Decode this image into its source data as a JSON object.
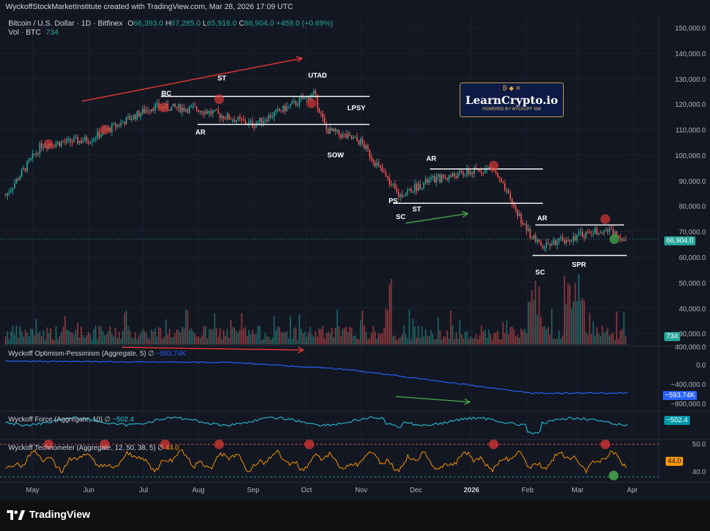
{
  "header": {
    "published_by": "WyckoffStockMarketInstitute created with TradingView.com, Mar 28, 2026 17:09 UTC",
    "symbol": "Bitcoin / U.S. Dollar · 1D · Bitfinex",
    "o_label": "O",
    "o_value": "66,393.0",
    "h_label": "H",
    "h_value": "67,285.0",
    "l_label": "L",
    "l_value": "65,916.0",
    "c_label": "C",
    "c_value": "66,904.0",
    "change": "+459.0 (+0.69%)",
    "volume_label": "Vol · BTC",
    "volume_value": "734"
  },
  "price_axis": {
    "ticks": [
      "150,000.0",
      "140,000.0",
      "130,000.0",
      "120,000.0",
      "110,000.0",
      "100,000.0",
      "90,000.0",
      "80,000.0",
      "70,000.0",
      "60,000.0",
      "50,000.0",
      "40,000.0",
      "30,000.0"
    ],
    "last_price": "66,904.0",
    "volume_badge": "734"
  },
  "time_axis": {
    "ticks": [
      "May",
      "Jun",
      "Jul",
      "Aug",
      "Sep",
      "Oct",
      "Nov",
      "Dec",
      "2026",
      "Feb",
      "Mar",
      "Apr"
    ]
  },
  "annotations": {
    "labels": [
      "BC",
      "ST",
      "AR",
      "UTAD",
      "LPSY",
      "SOW",
      "AR",
      "PS",
      "ST",
      "SC",
      "AR",
      "SC",
      "SPR"
    ]
  },
  "logo": {
    "title": "LearnCrypto.io",
    "subtitle": "POWERED BY WYCKOFF SMI",
    "top_icons": "₿ ◆ ✕"
  },
  "panes": {
    "optimism": {
      "title": "Wyckoff Optimism-Pessimism (Aggregate, 5)",
      "symbol": "∅",
      "value": "−593.74K",
      "ticks": [
        "400,000.0",
        "0.0",
        "−400,000.0",
        "−800,000.0"
      ],
      "badge": "−593.74K"
    },
    "force": {
      "title": "Wyckoff Force (Aggregate, 10)",
      "symbol": "∅",
      "value": "−502.4",
      "badge": "−502.4"
    },
    "technometer": {
      "title": "Wyckoff Technometer (Aggregate, 12, 50, 38, 5)",
      "symbol": "∅",
      "value": "44.0",
      "ticks": [
        "50.0",
        "40.0"
      ],
      "badge": "44.0"
    }
  },
  "footer": {
    "brand": "TradingView"
  },
  "colors": {
    "background": "#131722",
    "up": "#26a69a",
    "down": "#ef5350",
    "annotation_arrow_red": "#e53935",
    "annotation_arrow_green": "#43a047",
    "optimism_line": "#2962ff",
    "force_line": "#26c6da",
    "technometer_line": "#ff9800",
    "price_badge": "#26a69a"
  },
  "chart_data": {
    "type": "candlestick",
    "title": "Bitcoin / U.S. Dollar · 1D · Bitfinex",
    "x": [
      "May",
      "Jun",
      "Jul",
      "Aug",
      "Sep",
      "Oct",
      "Nov",
      "Dec",
      "2026",
      "Feb",
      "Mar",
      "Apr"
    ],
    "ylim": [
      30000,
      155000
    ],
    "close_path_approx": [
      [
        "Apr end",
        84000
      ],
      [
        "May mid",
        104000
      ],
      [
        "Jun mid",
        106000
      ],
      [
        "Jul mid",
        119000
      ],
      [
        "Aug mid",
        118000
      ],
      [
        "Sep mid",
        112000
      ],
      [
        "Oct early",
        124000
      ],
      [
        "Oct mid",
        110000
      ],
      [
        "Nov early",
        105000
      ],
      [
        "Nov late",
        84000
      ],
      [
        "Dec mid",
        90000
      ],
      [
        "Jan mid",
        95000
      ],
      [
        "Feb early",
        70000
      ],
      [
        "Feb mid",
        64000
      ],
      [
        "Mar mid",
        71000
      ],
      [
        "Mar end",
        66904
      ]
    ],
    "horizontal_levels": [
      {
        "name": "BC",
        "y": 123000
      },
      {
        "name": "AR",
        "y": 112000
      },
      {
        "name": "AR",
        "y": 94500
      },
      {
        "name": "ST",
        "y": 81000
      },
      {
        "name": "AR",
        "y": 72500
      },
      {
        "name": "SC",
        "y": 60500
      }
    ]
  }
}
